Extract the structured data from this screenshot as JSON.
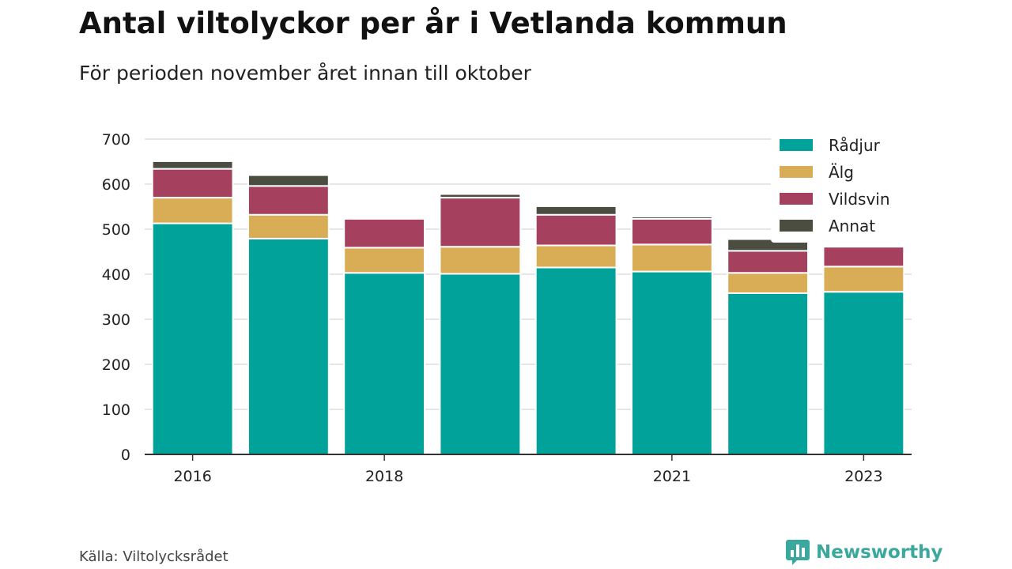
{
  "header": {
    "title": "Antal viltolyckor per år i Vetlanda kommun",
    "subtitle": "För perioden november året innan till oktober"
  },
  "footer": {
    "source": "Källa: Viltolycksrådet",
    "brand": "Newsworthy",
    "brand_icon": "bar-chart-logo-icon"
  },
  "colors": {
    "Rådjur": "#00a29a",
    "Älg": "#d9ac56",
    "Vildsvin": "#a6405f",
    "Annat": "#4b4d40",
    "grid": "#dddddd",
    "axis": "#333333"
  },
  "chart_data": {
    "type": "bar",
    "stacked": true,
    "categories": [
      "2016",
      "2017",
      "2018",
      "2019",
      "2020",
      "2021",
      "2022",
      "2023"
    ],
    "x_tick_labels": [
      "2016",
      "",
      "2018",
      "",
      "",
      "2021",
      "",
      "2023"
    ],
    "series": [
      {
        "name": "Rådjur",
        "values": [
          513,
          479,
          403,
          401,
          415,
          406,
          358,
          361
        ]
      },
      {
        "name": "Älg",
        "values": [
          57,
          53,
          56,
          60,
          49,
          60,
          45,
          56
        ]
      },
      {
        "name": "Vildsvin",
        "values": [
          64,
          64,
          64,
          109,
          68,
          57,
          49,
          44
        ]
      },
      {
        "name": "Annat",
        "values": [
          17,
          24,
          0,
          8,
          19,
          5,
          26,
          0
        ]
      }
    ],
    "ylim": [
      0,
      700
    ],
    "yticks": [
      0,
      100,
      200,
      300,
      400,
      500,
      600,
      700
    ],
    "grid": true,
    "legend": "top-right",
    "xlabel": "",
    "ylabel": ""
  }
}
